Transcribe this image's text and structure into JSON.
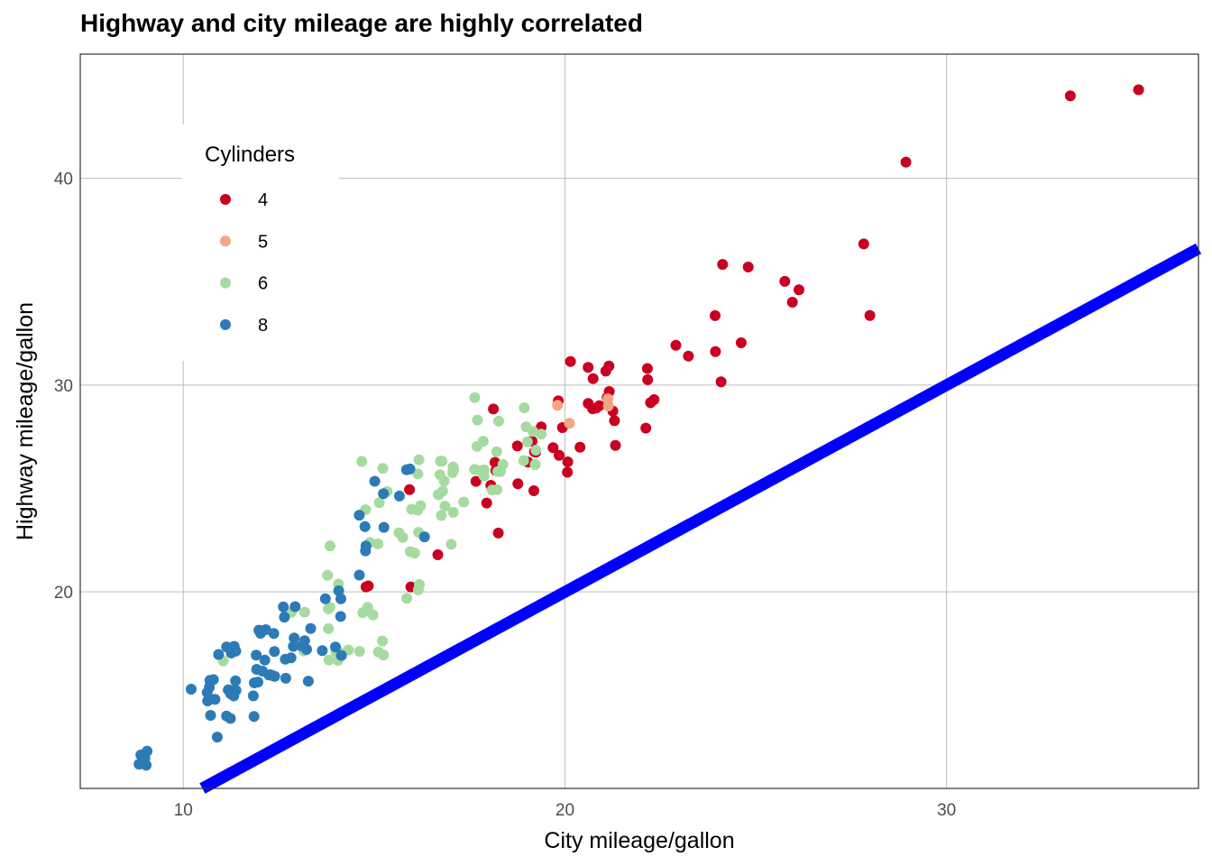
{
  "chart_data": {
    "type": "scatter",
    "title": "Highway and city mileage are highly correlated",
    "xlabel": "City mileage/gallon",
    "ylabel": "Highway mileage/gallon",
    "xlim": [
      7.3,
      36.6
    ],
    "ylim": [
      10.5,
      46.0
    ],
    "xticks": [
      10,
      20,
      30
    ],
    "yticks": [
      20,
      30,
      40
    ],
    "grid": true,
    "legend": {
      "title": "Cylinders",
      "placement": "top-left-inside",
      "entries": [
        {
          "label": "4",
          "color": "#CA0020"
        },
        {
          "label": "5",
          "color": "#F4A582"
        },
        {
          "label": "6",
          "color": "#A6DBA0"
        },
        {
          "label": "8",
          "color": "#2C7BB6"
        }
      ]
    },
    "reference_line": {
      "type": "y=x",
      "color": "#0000FF"
    },
    "series": [
      {
        "name": "4",
        "color": "#CA0020",
        "x": [
          18,
          21,
          20,
          21,
          18,
          18,
          19,
          20,
          19,
          21,
          20,
          19,
          21,
          22,
          20,
          21,
          21,
          21,
          19,
          19,
          18,
          18,
          19,
          21,
          21,
          21,
          22,
          23,
          24,
          24,
          25,
          26,
          28,
          29,
          33,
          35,
          24,
          25,
          26,
          24,
          28,
          26,
          21,
          21,
          22,
          22,
          20,
          20,
          19,
          19,
          18,
          18,
          17,
          16,
          15,
          15,
          16,
          21,
          22,
          23,
          20,
          20
        ],
        "y": [
          29,
          29,
          31,
          30,
          26,
          26,
          27,
          26,
          25,
          28,
          27,
          25,
          29,
          29,
          28,
          29,
          29,
          29,
          28,
          27,
          24,
          23,
          26,
          30,
          31,
          31,
          31,
          32,
          33,
          32,
          36,
          35,
          37,
          41,
          44,
          44,
          30,
          32,
          34,
          36,
          33,
          35,
          27,
          29,
          28,
          29,
          29,
          27,
          27,
          27,
          25,
          25,
          22,
          20,
          20,
          20,
          25,
          31,
          30,
          31,
          26,
          27
        ]
      },
      {
        "name": "5",
        "color": "#F4A582",
        "x": [
          20,
          20,
          21,
          21
        ],
        "y": [
          29,
          28,
          29,
          29
        ]
      },
      {
        "name": "6",
        "color": "#A6DBA0",
        "x": [
          16,
          17,
          16,
          17,
          18,
          18,
          18,
          18,
          19,
          19,
          19,
          18,
          18,
          17,
          17,
          17,
          16,
          16,
          15,
          15,
          15,
          15,
          14,
          14,
          14,
          14,
          13,
          13,
          13,
          14,
          15,
          15,
          15,
          16,
          16,
          16,
          17,
          17,
          18,
          18,
          18,
          19,
          19,
          19,
          17,
          17,
          16,
          15,
          15,
          14,
          14,
          11,
          14,
          15,
          15,
          16,
          17,
          17,
          17,
          18,
          18,
          19,
          19,
          18,
          18,
          17,
          17,
          16,
          16,
          15,
          16,
          14,
          14,
          14,
          15,
          15,
          16,
          17,
          18,
          18
        ],
        "y": [
          26,
          26,
          24,
          24,
          26,
          26,
          27,
          26,
          27,
          27,
          28,
          28,
          26,
          26,
          25,
          25,
          24,
          23,
          24,
          25,
          26,
          22,
          21,
          20,
          19,
          19,
          19,
          19,
          17,
          17,
          18,
          19,
          19,
          20,
          22,
          22,
          24,
          24,
          25,
          26,
          26,
          26,
          28,
          29,
          26,
          25,
          26,
          26,
          24,
          22,
          17,
          17,
          17,
          17,
          19,
          20,
          22,
          24,
          26,
          26,
          27,
          26,
          28,
          28,
          27,
          26,
          25,
          24,
          23,
          22,
          23,
          18,
          17,
          17,
          17,
          17,
          20,
          26,
          25,
          29
        ]
      },
      {
        "name": "8",
        "color": "#2C7BB6",
        "x": [
          11,
          11,
          11,
          11,
          11,
          12,
          12,
          12,
          11,
          11,
          12,
          12,
          11,
          11,
          11,
          11,
          12,
          12,
          11,
          11,
          11,
          11,
          11,
          12,
          12,
          12,
          13,
          13,
          13,
          13,
          13,
          13,
          14,
          14,
          14,
          14,
          13,
          13,
          13,
          13,
          14,
          14,
          14,
          15,
          15,
          15,
          15,
          15,
          15,
          16,
          16,
          16,
          16,
          15,
          15,
          13,
          13,
          13,
          9,
          9,
          9,
          9,
          9,
          9,
          10,
          11,
          11,
          12,
          12,
          12,
          12,
          12,
          11,
          11,
          11,
          12,
          12
        ],
        "y": [
          15,
          16,
          17,
          17,
          17,
          18,
          18,
          18,
          15,
          15,
          16,
          16,
          15,
          15,
          15,
          15,
          17,
          17,
          14,
          14,
          15,
          15,
          16,
          16,
          16,
          16,
          17,
          17,
          18,
          18,
          19,
          19,
          19,
          20,
          20,
          20,
          17,
          17,
          16,
          16,
          17,
          17,
          17,
          24,
          23,
          23,
          22,
          22,
          21,
          26,
          26,
          25,
          23,
          25,
          25,
          19,
          18,
          17,
          12,
          12,
          12,
          12,
          12,
          12,
          15,
          13,
          14,
          14,
          16,
          16,
          18,
          17,
          17,
          17,
          16,
          16,
          15
        ]
      }
    ]
  }
}
